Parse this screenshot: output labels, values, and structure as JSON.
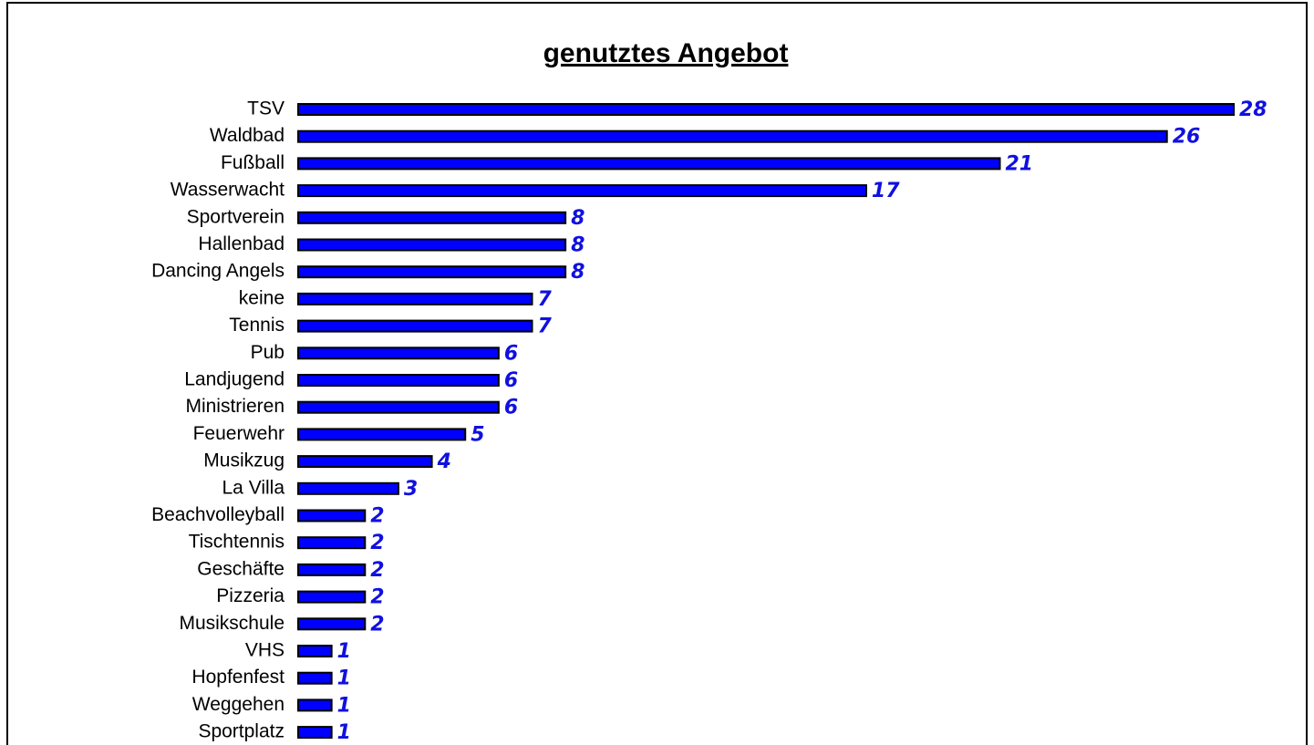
{
  "chart_data": {
    "type": "bar",
    "orientation": "horizontal",
    "title": "genutztes Angebot",
    "categories": [
      "TSV",
      "Waldbad",
      "Fußball",
      "Wasserwacht",
      "Sportverein",
      "Hallenbad",
      "Dancing Angels",
      "keine",
      "Tennis",
      "Pub",
      "Landjugend",
      "Ministrieren",
      "Feuerwehr",
      "Musikzug",
      "La Villa",
      "Beachvolleyball",
      "Tischtennis",
      "Geschäfte",
      "Pizzeria",
      "Musikschule",
      "VHS",
      "Hopfenfest",
      "Weggehen",
      "Sportplatz"
    ],
    "values": [
      28,
      26,
      21,
      17,
      8,
      8,
      8,
      7,
      7,
      6,
      6,
      6,
      5,
      4,
      3,
      2,
      2,
      2,
      2,
      2,
      1,
      1,
      1,
      1
    ],
    "color": "#0000ff"
  }
}
